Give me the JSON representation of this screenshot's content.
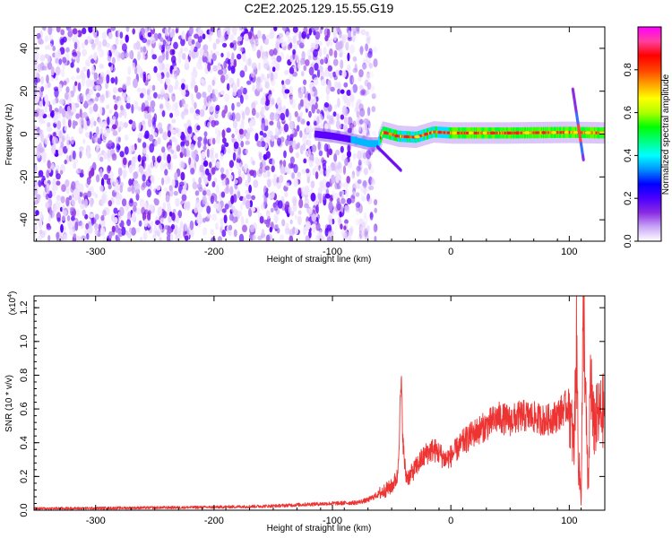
{
  "title": "C2E2.2025.129.15.55.G19",
  "chart_data": [
    {
      "type": "heatmap",
      "xlabel": "Height of straight line (km)",
      "ylabel": "Frequency (Hz)",
      "xlim": [
        -352,
        130
      ],
      "ylim": [
        -50,
        50
      ],
      "xticks": [
        -300,
        -200,
        -100,
        0,
        100
      ],
      "yticks": [
        -40,
        -20,
        0,
        20,
        40
      ],
      "noise_region_x": [
        -352,
        -68
      ],
      "signal_band": {
        "x_start": -115,
        "x_end": 130,
        "points": [
          {
            "x": -115,
            "f": 0.0
          },
          {
            "x": -100,
            "f": -1.0
          },
          {
            "x": -85,
            "f": -2.5
          },
          {
            "x": -70,
            "f": -4.5
          },
          {
            "x": -62,
            "f": -4.5
          },
          {
            "x": -58,
            "f": 1.0
          },
          {
            "x": -45,
            "f": -1.0
          },
          {
            "x": -30,
            "f": -1.5
          },
          {
            "x": -15,
            "f": 1.0
          },
          {
            "x": 0,
            "f": 0.5
          },
          {
            "x": 50,
            "f": 0.5
          },
          {
            "x": 100,
            "f": 0.8
          },
          {
            "x": 130,
            "f": 0.5
          }
        ]
      },
      "lower_branch": [
        {
          "x": -62,
          "f": -6
        },
        {
          "x": -42,
          "f": -17
        }
      ],
      "side_streak": [
        {
          "x": 103,
          "f": 21
        },
        {
          "x": 112,
          "f": -12
        }
      ],
      "colorbar": {
        "label": "Normalized spectral amplitude",
        "range": [
          0,
          1
        ],
        "ticks": [
          "0.0",
          "0.2",
          "0.4",
          "0.6",
          "0.8"
        ],
        "colors": [
          "#ffffff",
          "#c9a6f7",
          "#8a2be2",
          "#4b00ff",
          "#0000ff",
          "#0090ff",
          "#00ffff",
          "#00ff80",
          "#00ff00",
          "#b0ff00",
          "#ffff00",
          "#ffa000",
          "#ff4000",
          "#ff0000",
          "#ff40a0",
          "#ff00ff"
        ]
      }
    },
    {
      "type": "line",
      "xlabel": "Height of straight line (km)",
      "ylabel": "SNR (10 * v/v)",
      "yscale_label": "(x10",
      "yscale_exp": "4",
      "yscale_close": ")",
      "xlim": [
        -352,
        130
      ],
      "ylim": [
        0,
        1.27
      ],
      "xticks": [
        -300,
        -200,
        -100,
        0,
        100
      ],
      "yticks": [
        "0.0",
        "0.2",
        "0.4",
        "0.6",
        "0.8",
        "1.0",
        "1.2"
      ],
      "color": "#ee3333",
      "series": [
        {
          "x": [
            -352,
            -300,
            -250,
            -200,
            -150,
            -120,
            -100,
            -80,
            -70,
            -60,
            -50,
            -45,
            -42,
            -40,
            -38,
            -35,
            -30,
            -25,
            -20,
            -15,
            -10,
            -5,
            0,
            10,
            20,
            30,
            40,
            50,
            60,
            70,
            80,
            90,
            95,
            100,
            104,
            106,
            108,
            110,
            112,
            114,
            116,
            118,
            120,
            125,
            130
          ],
          "y": [
            0.01,
            0.012,
            0.015,
            0.018,
            0.025,
            0.035,
            0.04,
            0.045,
            0.06,
            0.1,
            0.14,
            0.2,
            0.75,
            0.35,
            0.2,
            0.2,
            0.25,
            0.3,
            0.34,
            0.36,
            0.34,
            0.3,
            0.32,
            0.4,
            0.46,
            0.5,
            0.55,
            0.53,
            0.56,
            0.55,
            0.53,
            0.56,
            0.6,
            0.62,
            0.35,
            1.0,
            0.25,
            0.1,
            1.27,
            0.6,
            0.08,
            0.85,
            0.5,
            0.56,
            0.6
          ]
        }
      ]
    }
  ]
}
